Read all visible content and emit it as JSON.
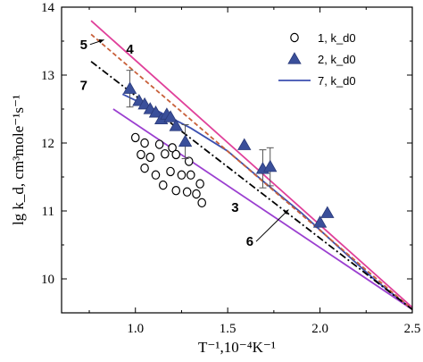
{
  "chart_data": {
    "type": "scatter",
    "xlabel": "T⁻¹,10⁻⁴K⁻¹",
    "ylabel": "lg k_d, cm³mole⁻¹s⁻¹",
    "xlim": [
      0.6,
      2.5
    ],
    "ylim": [
      9.5,
      14
    ],
    "x_ticks": [
      1.0,
      1.5,
      2.0,
      2.5
    ],
    "x_tick_labels": [
      "1.0",
      "1.5",
      "2.0",
      "2.5"
    ],
    "y_ticks": [
      10,
      11,
      12,
      13,
      14
    ],
    "y_tick_labels": [
      "10",
      "11",
      "12",
      "13",
      "14"
    ],
    "legend_position": "top-right",
    "series": [
      {
        "name": "1, k_d0",
        "kind": "scatter",
        "marker": "open-circle",
        "color": "#000000",
        "x": [
          1.0,
          1.05,
          1.13,
          1.2,
          1.03,
          1.08,
          1.16,
          1.22,
          1.29,
          1.05,
          1.11,
          1.19,
          1.25,
          1.3,
          1.35,
          1.15,
          1.22,
          1.28,
          1.33,
          1.36
        ],
        "y": [
          12.08,
          12.0,
          11.98,
          11.93,
          11.83,
          11.79,
          11.84,
          11.83,
          11.73,
          11.63,
          11.53,
          11.58,
          11.53,
          11.53,
          11.4,
          11.38,
          11.3,
          11.28,
          11.25,
          11.12
        ]
      },
      {
        "name": "2, k_d0",
        "kind": "scatter",
        "marker": "filled-triangle",
        "color": "#3a4f9a",
        "x": [
          0.97,
          1.02,
          1.05,
          1.08,
          1.11,
          1.14,
          1.17,
          1.19,
          1.22,
          1.27,
          1.59,
          1.69,
          1.73,
          2.0,
          2.04
        ],
        "y": [
          12.8,
          12.62,
          12.57,
          12.5,
          12.45,
          12.35,
          12.42,
          12.38,
          12.25,
          12.02,
          11.97,
          11.62,
          11.65,
          10.83,
          10.97
        ],
        "error_bars": [
          {
            "x": 0.97,
            "y": 12.8,
            "err": 0.27
          },
          {
            "x": 1.27,
            "y": 12.02,
            "err": 0.25
          },
          {
            "x": 1.69,
            "y": 11.62,
            "err": 0.28
          },
          {
            "x": 1.73,
            "y": 11.65,
            "err": 0.28
          }
        ]
      },
      {
        "name": "7, k_d0",
        "kind": "line",
        "style": "solid",
        "color": "#3b4fb0",
        "x": [
          0.93,
          1.1,
          1.3,
          1.5,
          1.7,
          1.9,
          2.1,
          2.3,
          2.5
        ],
        "y": [
          12.72,
          12.5,
          12.22,
          11.88,
          11.42,
          10.97,
          10.47,
          9.98,
          9.55
        ]
      },
      {
        "name": "3",
        "kind": "line",
        "style": "solid",
        "color": "#9b3fd0",
        "x": [
          0.88,
          2.5
        ],
        "y": [
          12.5,
          9.55
        ]
      },
      {
        "name": "4",
        "kind": "line",
        "style": "solid",
        "color": "#e0409a",
        "x": [
          0.76,
          2.5
        ],
        "y": [
          13.8,
          9.58
        ]
      },
      {
        "name": "5",
        "kind": "line",
        "style": "dashed",
        "color": "#c8603a",
        "x": [
          0.76,
          2.5
        ],
        "y": [
          13.6,
          9.55
        ]
      },
      {
        "name": "6",
        "kind": "line",
        "style": "dash-dot",
        "color": "#000000",
        "x": [
          0.76,
          2.5
        ],
        "y": [
          13.2,
          9.55
        ]
      }
    ],
    "annotations": [
      {
        "text": "5",
        "x": 0.72,
        "y": 13.45,
        "arrow_to_x": 0.83,
        "arrow_to_y": 13.52
      },
      {
        "text": "4",
        "x": 0.97,
        "y": 13.38
      },
      {
        "text": "7",
        "x": 0.72,
        "y": 12.85
      },
      {
        "text": "3",
        "x": 1.54,
        "y": 11.05
      },
      {
        "text": "6",
        "x": 1.62,
        "y": 10.55,
        "arrow_to_x": 1.83,
        "arrow_to_y": 11.02
      }
    ]
  }
}
